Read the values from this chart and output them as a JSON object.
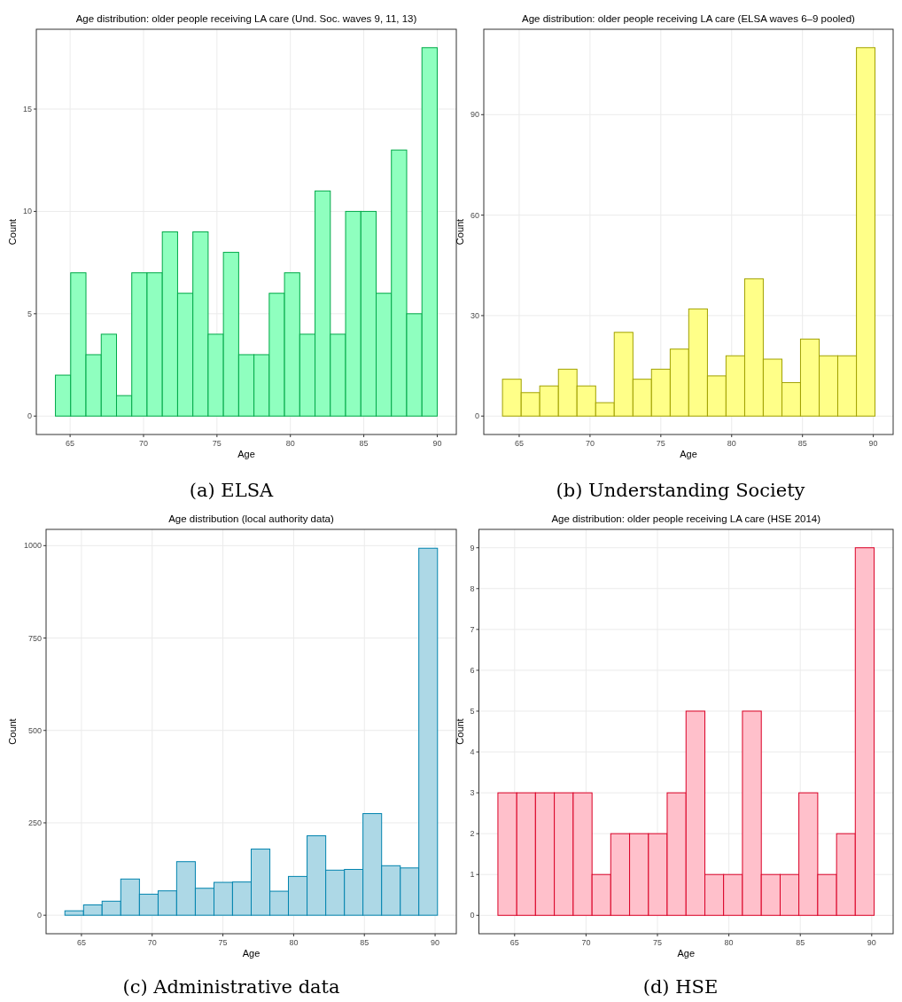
{
  "chart_data": [
    {
      "type": "histogram",
      "title": "Age distribution: older people receiving LA care (Und. Soc. waves 9, 11, 13)",
      "xlabel": "Age",
      "ylabel": "Count",
      "annotations": [
        "(a) ELSA"
      ],
      "bins": [
        64,
        65.04,
        66.08,
        67.12,
        68.16,
        69.2,
        70.24,
        71.28,
        72.32,
        73.36,
        74.4,
        75.44,
        76.48,
        77.52,
        78.56,
        79.6,
        80.64,
        81.68,
        82.72,
        83.76,
        84.8,
        85.84,
        86.88,
        87.92,
        88.96,
        90
      ],
      "values": [
        2,
        7,
        3,
        4,
        1,
        7,
        7,
        9,
        6,
        9,
        4,
        8,
        3,
        3,
        6,
        7,
        4,
        11,
        4,
        10,
        10,
        6,
        13,
        5,
        18
      ],
      "color": "#8fffbf",
      "xlim": [
        62.7,
        91.3
      ],
      "xticks": [
        65,
        70,
        75,
        80,
        85,
        90
      ],
      "ylim": [
        -0.9,
        18.9
      ],
      "yticks": [
        0,
        5,
        10,
        15
      ],
      "grid": true
    },
    {
      "type": "histogram",
      "title": "Age distribution: older people receiving LA care (ELSA waves 6–9 pooled)",
      "xlabel": "Age",
      "ylabel": "Count",
      "annotations": [
        "(b) Understanding Society"
      ],
      "bins": [
        63.82,
        65.14,
        66.45,
        67.77,
        69.08,
        70.4,
        71.71,
        73.03,
        74.34,
        75.66,
        76.97,
        78.29,
        79.6,
        80.92,
        82.23,
        83.55,
        84.86,
        86.18,
        87.49,
        88.81,
        90.12
      ],
      "values": [
        11,
        7,
        9,
        14,
        9,
        4,
        25,
        11,
        14,
        20,
        32,
        12,
        18,
        41,
        17,
        10,
        23,
        18,
        18,
        110
      ],
      "color": "#ffff88",
      "xlim": [
        62.5,
        91.4
      ],
      "xticks": [
        65,
        70,
        75,
        80,
        85,
        90
      ],
      "ylim": [
        -5.5,
        115.5
      ],
      "yticks": [
        0,
        30,
        60,
        90
      ],
      "grid": true
    },
    {
      "type": "histogram",
      "title": "Age distribution (local authority data)",
      "xlabel": "Age",
      "ylabel": "Count",
      "annotations": [
        "(c) Administrative data"
      ],
      "bins": [
        63.83,
        65.15,
        66.46,
        67.78,
        69.1,
        70.42,
        71.73,
        73.05,
        74.37,
        75.68,
        77,
        78.32,
        79.63,
        80.95,
        82.27,
        83.59,
        84.9,
        86.22,
        87.54,
        88.85,
        90.17
      ],
      "values": [
        12,
        28,
        38,
        98,
        57,
        66,
        145,
        73,
        89,
        90,
        179,
        65,
        105,
        215,
        122,
        124,
        275,
        134,
        128,
        993
      ],
      "color": "#add8e6",
      "xlim": [
        62.5,
        91.5
      ],
      "xticks": [
        65,
        70,
        75,
        80,
        85,
        90
      ],
      "ylim": [
        -50,
        1044
      ],
      "yticks": [
        0,
        250,
        500,
        750,
        1000
      ],
      "grid": true
    },
    {
      "type": "histogram",
      "title": "Age distribution: older people receiving LA care (HSE 2014)",
      "xlabel": "Age",
      "ylabel": "Count",
      "annotations": [
        "(d) HSE"
      ],
      "bins": [
        63.83,
        65.15,
        66.46,
        67.78,
        69.1,
        70.42,
        71.73,
        73.05,
        74.37,
        75.68,
        77,
        78.32,
        79.63,
        80.95,
        82.27,
        83.59,
        84.9,
        86.22,
        87.54,
        88.85,
        90.17
      ],
      "values": [
        3,
        3,
        3,
        3,
        3,
        1,
        2,
        2,
        2,
        3,
        5,
        1,
        1,
        5,
        1,
        1,
        3,
        1,
        2,
        9
      ],
      "color": "#ffc0cb",
      "xlim": [
        62.5,
        91.5
      ],
      "xticks": [
        65,
        70,
        75,
        80,
        85,
        90
      ],
      "ylim": [
        -0.45,
        9.45
      ],
      "yticks": [
        0,
        1,
        2,
        3,
        4,
        5,
        6,
        7,
        8,
        9
      ],
      "grid": true
    }
  ]
}
